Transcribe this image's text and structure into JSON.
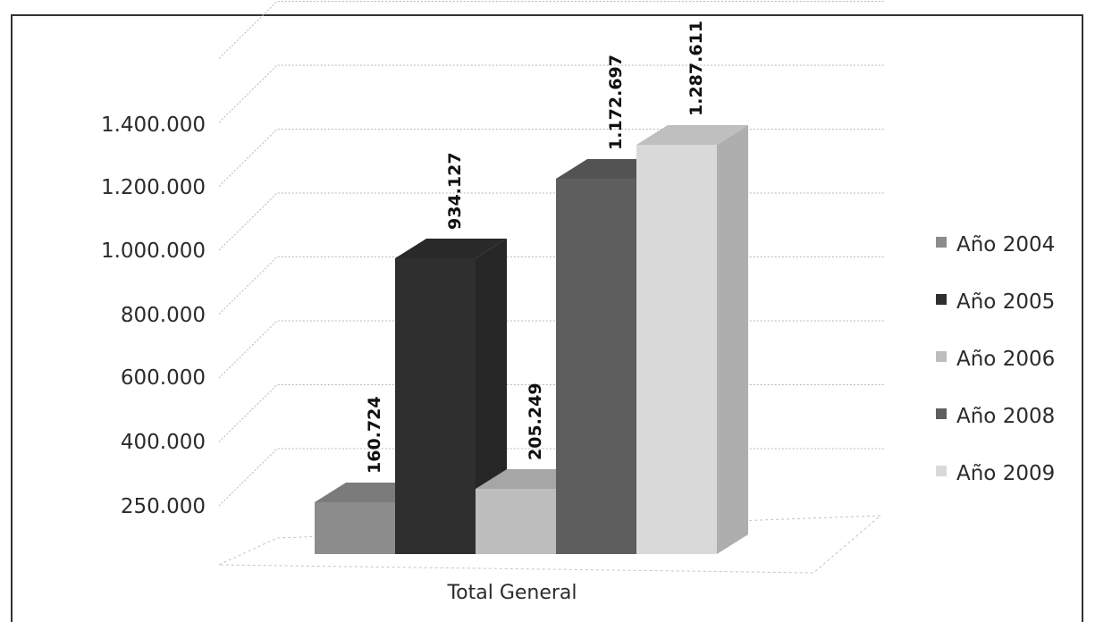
{
  "chart_data": {
    "type": "bar",
    "title": "",
    "xlabel": "",
    "ylabel": "",
    "categories": [
      "Total General"
    ],
    "series": [
      {
        "name": "Año 2004",
        "values": [
          160724
        ],
        "label": "160.724",
        "color": "#8c8c8c"
      },
      {
        "name": "Año 2005",
        "values": [
          934127
        ],
        "label": "934.127",
        "color": "#2f2f2f"
      },
      {
        "name": "Año 2006",
        "values": [
          205249
        ],
        "label": "205.249",
        "color": "#bdbdbd"
      },
      {
        "name": "Año 2008",
        "values": [
          1172697
        ],
        "label": "1.172.697",
        "color": "#5e5e5e"
      },
      {
        "name": "Año 2009",
        "values": [
          1287611
        ],
        "label": "1.287.611",
        "color": "#d9d9d9"
      }
    ],
    "y_ticks": [
      {
        "value": 250000,
        "label": "250.000"
      },
      {
        "value": 400000,
        "label": "400.000"
      },
      {
        "value": 600000,
        "label": "600.000"
      },
      {
        "value": 800000,
        "label": "800.000"
      },
      {
        "value": 1000000,
        "label": "1.000.000"
      },
      {
        "value": 1200000,
        "label": "1.200.000"
      },
      {
        "value": 1400000,
        "label": "1.400.000"
      }
    ],
    "ylim": [
      0,
      1600000
    ],
    "grid": true,
    "legend_position": "right",
    "style": "3d-column"
  }
}
